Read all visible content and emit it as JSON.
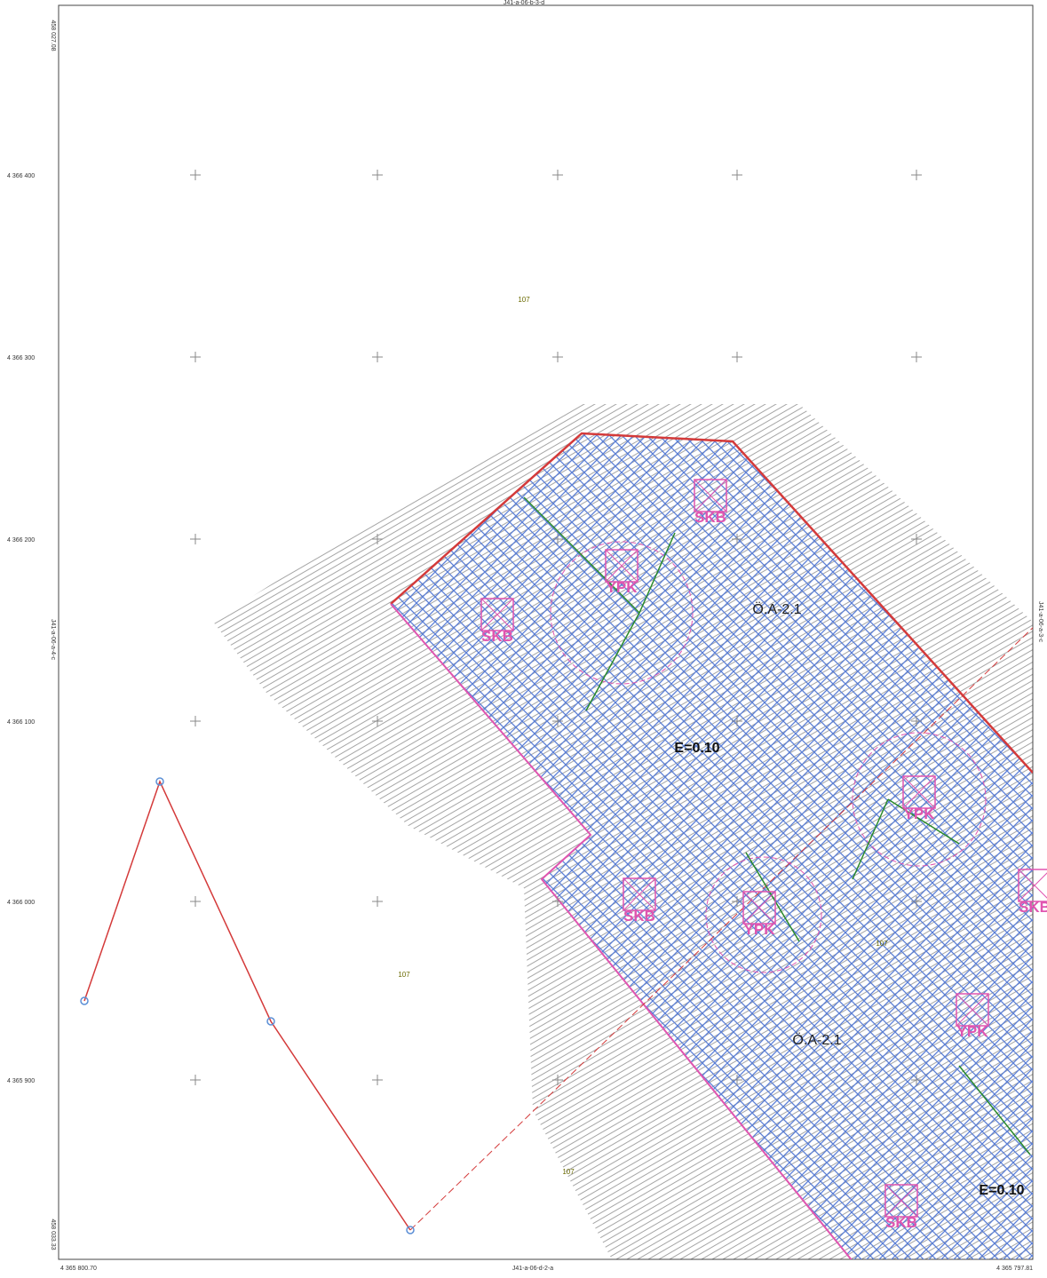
{
  "frame": {
    "top_sheet": "J41-a-06-b-3-d",
    "bottom_sheet": "J41-a-06-d-2-a",
    "left_sheet": "J41-a-06-a-4-c",
    "right_sheet": "J41-a-06-a-3-c",
    "bottom_left_coord": "4 365 800.70",
    "bottom_right_coord": "4 365 797.81",
    "left_top_coord": "458 027.08",
    "left_bottom_coord": "458 033.33"
  },
  "northings": [
    "4 366 400",
    "4 366 300",
    "4 366 200",
    "4 366 100",
    "4 366 000",
    "4 365 900"
  ],
  "map_labels": {
    "skb": "SKB",
    "ypk": "YPK",
    "zone": "Ö.A-2.1",
    "coef": "E=0.10",
    "parcel": "107"
  }
}
